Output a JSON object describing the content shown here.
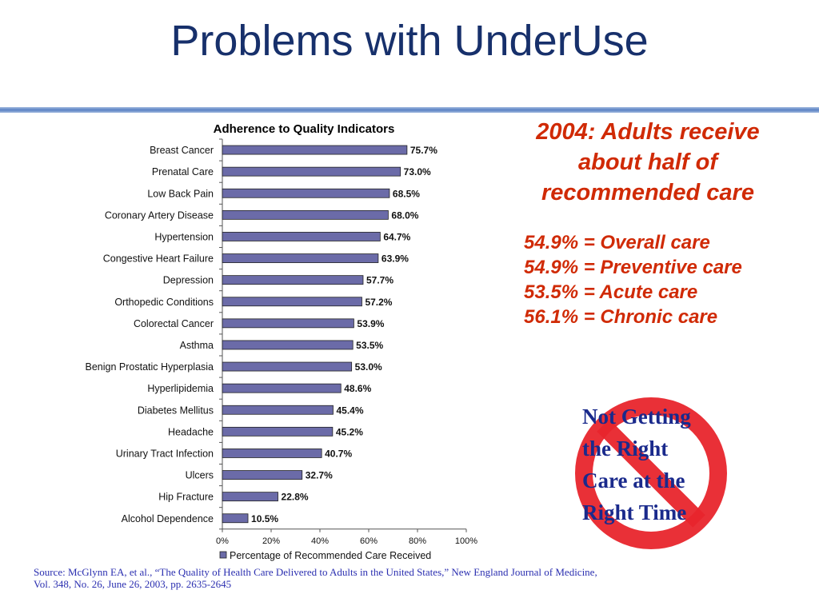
{
  "slide": {
    "title": "Problems with UnderUse",
    "headline": [
      "2004:  Adults receive",
      "about half of",
      "recommended care"
    ],
    "stats": [
      "54.9% = Overall care",
      "54.9% = Preventive care",
      "53.5% = Acute care",
      "56.1% = Chronic care"
    ],
    "sign_text": [
      "Not Getting",
      "the Right",
      "Care at the",
      "Right Time"
    ],
    "source_line1": "Source:  McGlynn EA, et al., “The Quality of Health Care Delivered to Adults in the United States,” New England Journal of Medicine,",
    "source_line2": "Vol. 348, No. 26, June 26, 2003, pp. 2635-2645",
    "colors": {
      "title": "#17306b",
      "accent": "#d02a05",
      "bar_fill": "#6b6ba8",
      "sign_red": "#e8252c",
      "sign_text": "#1a2a8c"
    }
  },
  "chart_data": {
    "type": "bar",
    "orientation": "horizontal",
    "title": "Adherence to Quality Indicators",
    "categories": [
      "Breast Cancer",
      "Prenatal Care",
      "Low Back Pain",
      "Coronary Artery Disease",
      "Hypertension",
      "Congestive Heart Failure",
      "Depression",
      "Orthopedic Conditions",
      "Colorectal Cancer",
      "Asthma",
      "Benign Prostatic Hyperplasia",
      "Hyperlipidemia",
      "Diabetes Mellitus",
      "Headache",
      "Urinary Tract Infection",
      "Ulcers",
      "Hip Fracture",
      "Alcohol Dependence"
    ],
    "series": [
      {
        "name": "Percentage of Recommended Care Received",
        "values": [
          75.7,
          73.0,
          68.5,
          68.0,
          64.7,
          63.9,
          57.7,
          57.2,
          53.9,
          53.5,
          53.0,
          48.6,
          45.4,
          45.2,
          40.7,
          32.7,
          22.8,
          10.5
        ]
      }
    ],
    "data_labels": [
      "75.7%",
      "73.0%",
      "68.5%",
      "68.0%",
      "64.7%",
      "63.9%",
      "57.7%",
      "57.2%",
      "53.9%",
      "53.5%",
      "53.0%",
      "48.6%",
      "45.4%",
      "45.2%",
      "40.7%",
      "32.7%",
      "22.8%",
      "10.5%"
    ],
    "x_ticks": [
      "0%",
      "20%",
      "40%",
      "60%",
      "80%",
      "100%"
    ],
    "xlim": [
      0,
      100
    ],
    "grid": false,
    "legend": "bottom"
  }
}
